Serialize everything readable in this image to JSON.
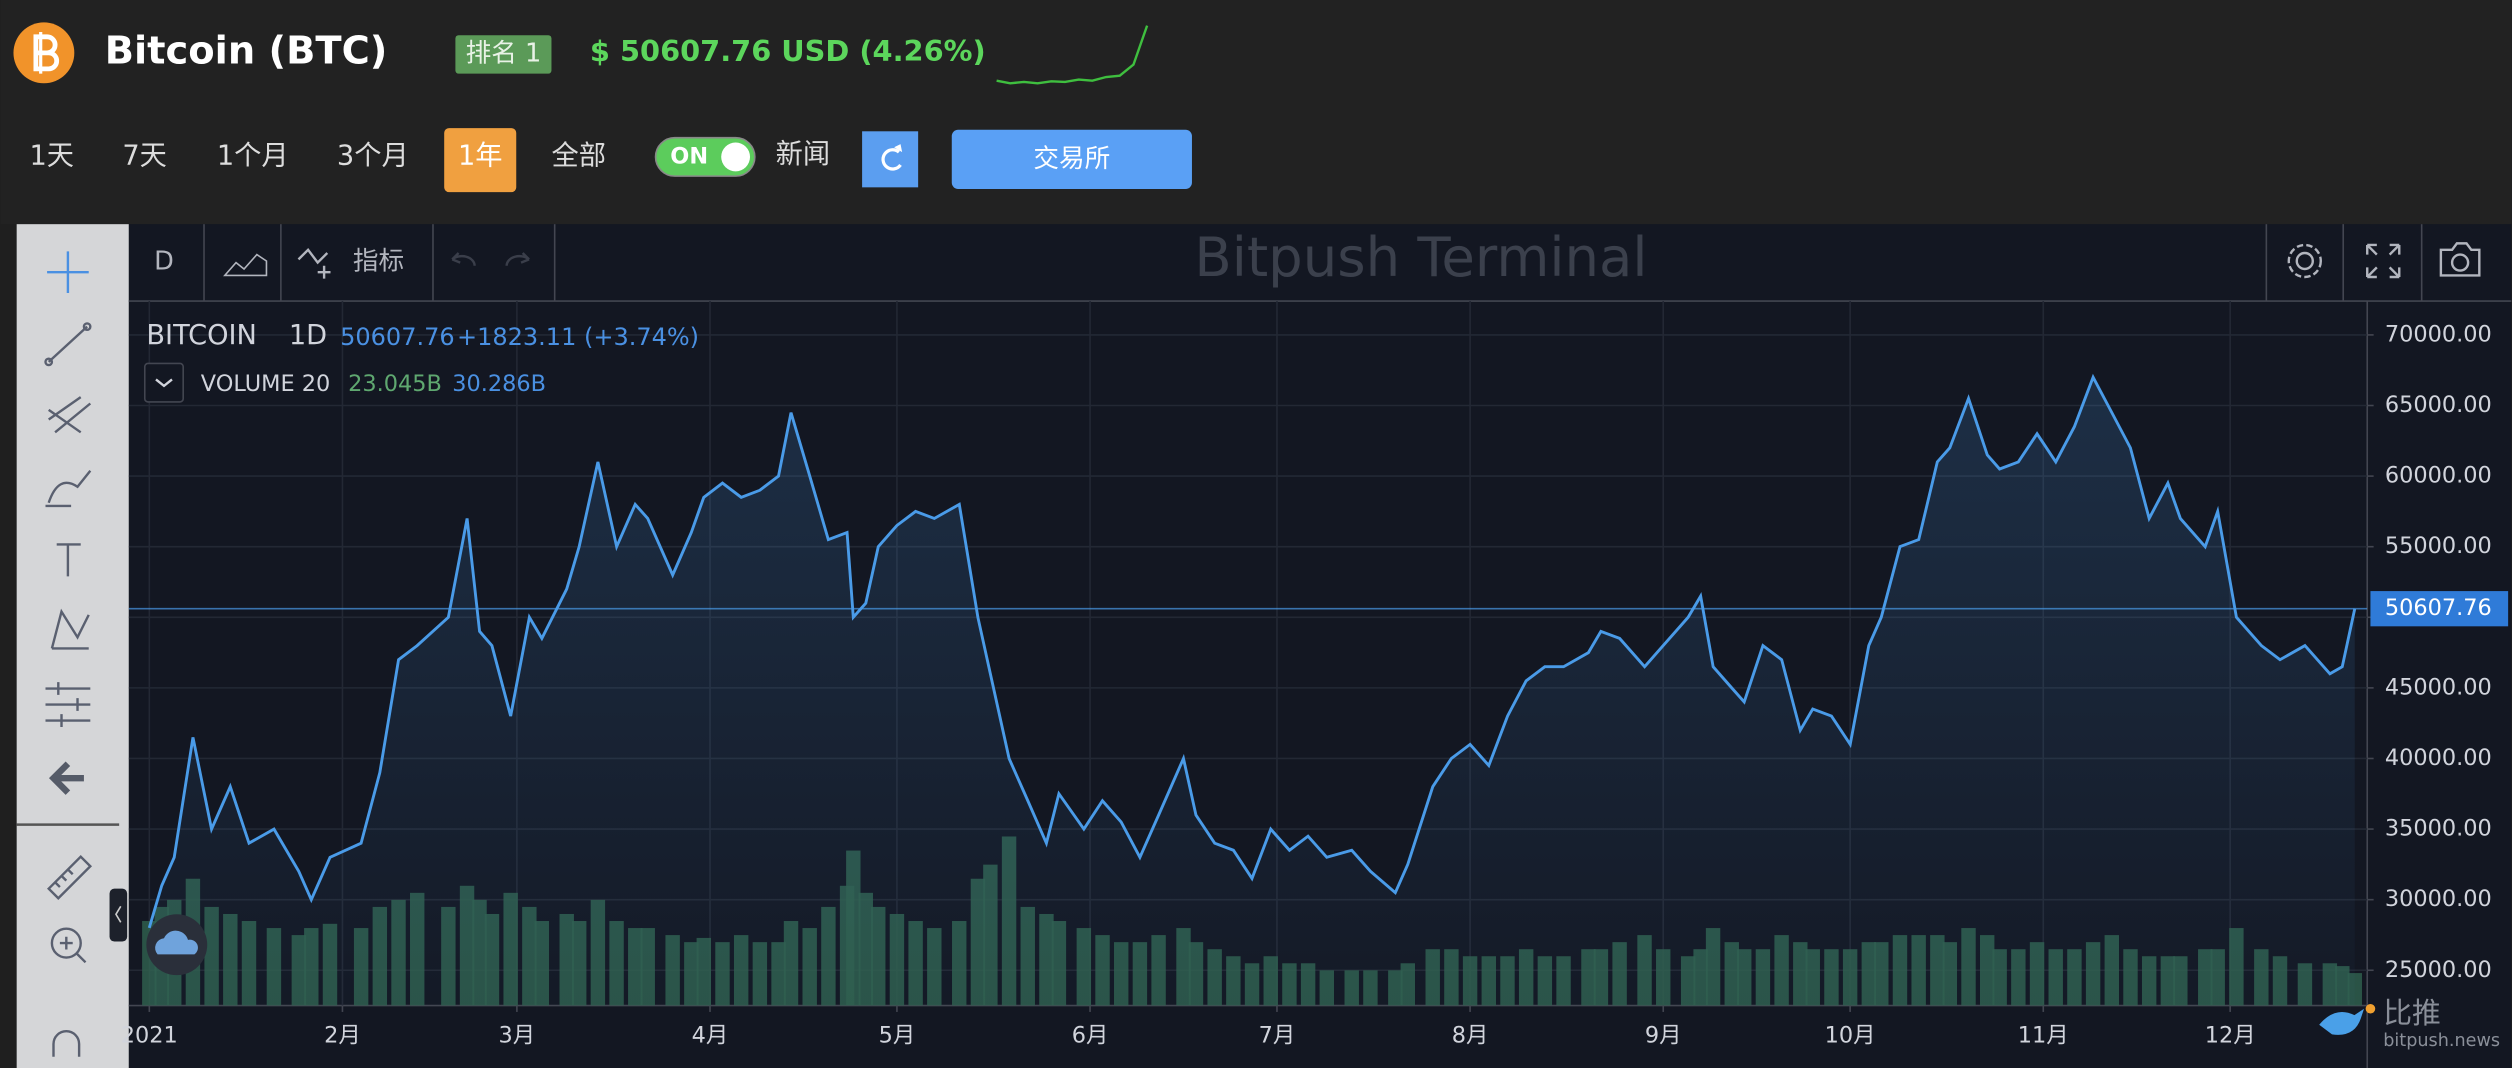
{
  "header": {
    "name": "Bitcoin (BTC)",
    "rank": "排名 1",
    "price": "$ 50607.76 USD (4.26%)",
    "sparkline": {
      "color": "#3fbf3f",
      "values": [
        46200,
        46000,
        46100,
        46000,
        46150,
        46100,
        46300,
        46200,
        46500,
        46600,
        47500,
        50607.76
      ]
    }
  },
  "ranges": [
    "1天",
    "7天",
    "1个月",
    "3个月",
    "1年",
    "全部"
  ],
  "active_range": 4,
  "toggle": "ON",
  "news": "新闻",
  "exchange": "交易所",
  "toolbar": {
    "interval": "D",
    "indicators": "指标",
    "watermark": "Bitpush Terminal"
  },
  "chart_data": {
    "type": "line",
    "legend": {
      "symbol": "BITCOIN",
      "interval": "1D",
      "last": "50607.76",
      "change": "+1823.11 (+3.74%)",
      "volume_label": "VOLUME 20",
      "volume_last": "23.045B",
      "volume_ma": "30.286B"
    },
    "x": [
      0,
      2,
      4,
      7,
      10,
      13,
      16,
      20,
      24,
      26,
      29,
      34,
      37,
      40,
      43,
      48,
      51,
      53,
      55,
      58,
      61,
      63,
      67,
      69,
      72,
      75,
      78,
      80,
      84,
      87,
      89,
      92,
      95,
      98,
      101,
      103,
      106,
      109,
      112,
      113,
      115,
      117,
      120,
      123,
      126,
      130,
      133,
      135,
      138,
      141,
      144,
      146,
      150,
      153,
      156,
      159,
      162,
      166,
      168,
      171,
      174,
      177,
      180,
      183,
      186,
      189,
      193,
      196,
      200,
      202,
      206,
      209,
      212,
      215,
      218,
      221,
      224,
      227,
      231,
      233,
      236,
      240,
      243,
      247,
      249,
      251,
      254,
      256,
      259,
      262,
      265,
      267,
      270,
      273,
      276,
      278,
      281,
      284,
      287,
      289,
      292,
      295,
      297,
      300,
      303,
      306,
      309,
      312,
      315,
      318,
      321,
      324,
      326,
      330,
      332,
      335,
      339,
      342,
      346,
      350,
      352,
      354
    ],
    "series": [
      {
        "name": "BITCOIN",
        "color": "#4a9be8",
        "values": [
          28000,
          31000,
          33000,
          41500,
          35000,
          38000,
          34000,
          35000,
          32000,
          30000,
          33000,
          34000,
          39000,
          47000,
          48000,
          50000,
          57000,
          49000,
          48000,
          43000,
          50000,
          48500,
          52000,
          55000,
          61000,
          55000,
          58000,
          57000,
          53000,
          56000,
          58500,
          59500,
          58500,
          59000,
          60000,
          64500,
          60000,
          55500,
          56000,
          50000,
          51000,
          55000,
          56500,
          57500,
          57000,
          58000,
          50000,
          46000,
          40000,
          37000,
          34000,
          37500,
          35000,
          37000,
          35500,
          33000,
          36000,
          40000,
          36000,
          34000,
          33500,
          31500,
          35000,
          33500,
          34500,
          33000,
          33500,
          32000,
          30500,
          32500,
          38000,
          40000,
          41000,
          39500,
          43000,
          45500,
          46500,
          46500,
          47500,
          49000,
          48500,
          46500,
          48000,
          50000,
          51500,
          46500,
          45000,
          44000,
          48000,
          47000,
          42000,
          43500,
          43000,
          41000,
          48000,
          50000,
          55000,
          55500,
          61000,
          62000,
          65500,
          61500,
          60500,
          61000,
          63000,
          61000,
          63500,
          67000,
          64500,
          62000,
          57000,
          59500,
          57000,
          55000,
          57500,
          50000,
          48000,
          47000,
          48000,
          46000,
          46500,
          50607.76
        ]
      }
    ],
    "volume": {
      "color": "#2f5e4c",
      "ylim": [
        0,
        500
      ],
      "values": [
        60,
        70,
        75,
        90,
        70,
        65,
        60,
        55,
        50,
        55,
        58,
        55,
        70,
        75,
        80,
        70,
        85,
        75,
        65,
        80,
        70,
        60,
        65,
        60,
        75,
        60,
        55,
        55,
        50,
        45,
        48,
        45,
        50,
        45,
        45,
        60,
        55,
        70,
        85,
        110,
        80,
        70,
        65,
        60,
        55,
        60,
        90,
        100,
        120,
        70,
        65,
        60,
        55,
        50,
        45,
        45,
        50,
        55,
        45,
        40,
        35,
        30,
        35,
        30,
        30,
        25,
        25,
        25,
        25,
        30,
        40,
        40,
        35,
        35,
        35,
        40,
        35,
        35,
        40,
        40,
        45,
        50,
        40,
        35,
        40,
        55,
        45,
        40,
        40,
        50,
        45,
        40,
        40,
        40,
        45,
        45,
        50,
        50,
        50,
        45,
        55,
        50,
        40,
        40,
        45,
        40,
        40,
        45,
        50,
        40,
        35,
        35,
        35,
        40,
        40,
        55,
        40,
        35,
        30,
        30,
        28,
        23.045
      ]
    },
    "xlim": [
      -3.3,
      356
    ],
    "ylim": [
      22500,
      72400
    ],
    "xticks": [
      {
        "value": 0,
        "label": "2021"
      },
      {
        "value": 31,
        "label": "2月"
      },
      {
        "value": 59,
        "label": "3月"
      },
      {
        "value": 90,
        "label": "4月"
      },
      {
        "value": 120,
        "label": "5月"
      },
      {
        "value": 151,
        "label": "6月"
      },
      {
        "value": 181,
        "label": "7月"
      },
      {
        "value": 212,
        "label": "8月"
      },
      {
        "value": 243,
        "label": "9月"
      },
      {
        "value": 273,
        "label": "10月"
      },
      {
        "value": 304,
        "label": "11月"
      },
      {
        "value": 334,
        "label": "12月"
      }
    ],
    "yticks": [
      {
        "value": 25000,
        "label": "25000.00"
      },
      {
        "value": 30000,
        "label": "30000.00"
      },
      {
        "value": 35000,
        "label": "35000.00"
      },
      {
        "value": 40000,
        "label": "40000.00"
      },
      {
        "value": 45000,
        "label": "45000.00"
      },
      {
        "value": 50000,
        "label": "50000.00"
      },
      {
        "value": 55000,
        "label": "55000.00"
      },
      {
        "value": 60000,
        "label": "60000.00"
      },
      {
        "value": 65000,
        "label": "65000.00"
      },
      {
        "value": 70000,
        "label": "70000.00"
      }
    ],
    "grid": true
  },
  "footer": {
    "brand": "比推",
    "url": "bitpush.news"
  }
}
